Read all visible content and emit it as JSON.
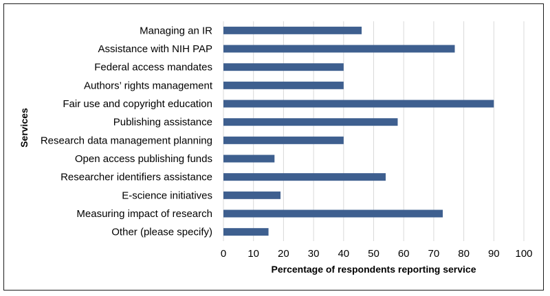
{
  "chart_data": {
    "type": "bar",
    "orientation": "horizontal",
    "categories": [
      "Managing an IR",
      "Assistance with NIH PAP",
      "Federal access mandates",
      "Authors’ rights management",
      "Fair use and copyright education",
      "Publishing assistance",
      "Research data management planning",
      "Open access publishing funds",
      "Researcher identifiers assistance",
      "E-science initiatives",
      "Measuring impact of research",
      "Other (please specify)"
    ],
    "values": [
      46,
      77,
      40,
      40,
      90,
      58,
      40,
      17,
      54,
      19,
      73,
      15
    ],
    "xlabel": "Percentage of respondents reporting service",
    "ylabel": "Services",
    "xlim": [
      0,
      100
    ],
    "xticks": [
      0,
      10,
      20,
      30,
      40,
      50,
      60,
      70,
      80,
      90,
      100
    ],
    "grid": "vertical",
    "legend": "none",
    "bar_color": "#3e5f8f",
    "grid_color": "#d9d9d9"
  }
}
